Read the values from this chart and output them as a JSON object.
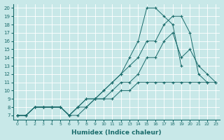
{
  "xlabel": "Humidex (Indice chaleur)",
  "xlim": [
    -0.5,
    23.5
  ],
  "ylim": [
    6.5,
    20.5
  ],
  "xticks": [
    0,
    1,
    2,
    3,
    4,
    5,
    6,
    7,
    8,
    9,
    10,
    11,
    12,
    13,
    14,
    15,
    16,
    17,
    18,
    19,
    20,
    21,
    22,
    23
  ],
  "yticks": [
    7,
    8,
    9,
    10,
    11,
    12,
    13,
    14,
    15,
    16,
    17,
    18,
    19,
    20
  ],
  "color": "#1a6b6b",
  "bg_color": "#c8e8e8",
  "lines": [
    {
      "x": [
        0,
        1,
        2,
        3,
        4,
        5,
        6,
        7,
        8,
        9,
        10,
        11,
        12,
        13,
        14,
        15,
        16,
        17,
        18,
        19,
        20,
        21,
        22,
        23
      ],
      "y": [
        7,
        7,
        8,
        8,
        8,
        8,
        7,
        7,
        8,
        9,
        10,
        11,
        12,
        14,
        16,
        20,
        20,
        19,
        18,
        13,
        null,
        null,
        null,
        null
      ]
    },
    {
      "x": [
        0,
        1,
        2,
        3,
        4,
        5,
        6,
        7,
        8,
        9,
        10,
        11,
        12,
        13,
        14,
        15,
        16,
        17,
        18,
        19,
        20,
        21,
        22,
        23
      ],
      "y": [
        7,
        7,
        8,
        8,
        8,
        8,
        7,
        8,
        9,
        9,
        10,
        11,
        12,
        13,
        14,
        16,
        16,
        18,
        19,
        19,
        17,
        12,
        11,
        null
      ]
    },
    {
      "x": [
        0,
        1,
        2,
        3,
        4,
        5,
        6,
        7,
        8,
        9,
        10,
        11,
        12,
        13,
        14,
        15,
        16,
        17,
        18,
        19,
        20,
        21,
        22,
        23
      ],
      "y": [
        7,
        7,
        8,
        8,
        8,
        8,
        7,
        8,
        9,
        9,
        9,
        10,
        11,
        11,
        12,
        14,
        14,
        16,
        17,
        14,
        15,
        13,
        12,
        11
      ]
    },
    {
      "x": [
        0,
        1,
        2,
        3,
        4,
        5,
        6,
        7,
        8,
        9,
        10,
        11,
        12,
        13,
        14,
        15,
        16,
        17,
        18,
        19,
        20,
        21,
        22,
        23
      ],
      "y": [
        7,
        7,
        8,
        8,
        8,
        8,
        7,
        8,
        8,
        9,
        9,
        9,
        10,
        10,
        11,
        11,
        11,
        11,
        11,
        11,
        11,
        11,
        11,
        11
      ]
    }
  ]
}
